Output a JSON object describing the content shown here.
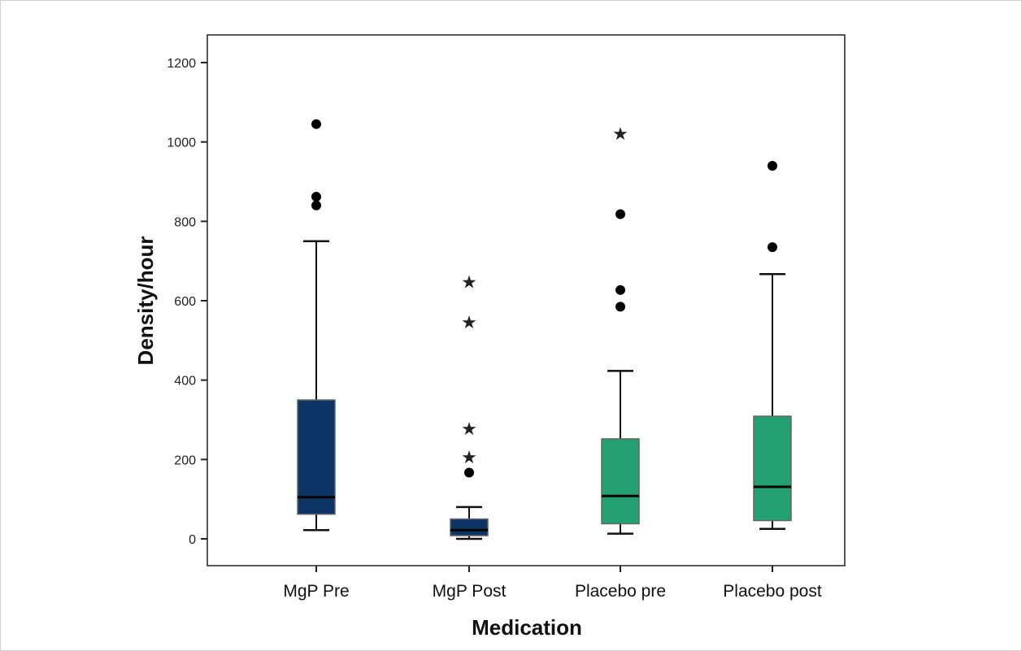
{
  "chart_data": {
    "type": "boxplot",
    "xlabel": "Medication",
    "ylabel": "Density/hour",
    "ylim": [
      -65,
      1230
    ],
    "yticks": [
      0,
      200,
      400,
      600,
      800,
      1000,
      1200
    ],
    "grid": false,
    "colors": {
      "mgp": "#0c3566",
      "placebo": "#22a072",
      "outline": "#666666"
    },
    "categories": [
      "MgP Pre",
      "MgP Post",
      "Placebo pre",
      "Placebo post"
    ],
    "boxes": [
      {
        "name": "MgP Pre",
        "color": "mgp",
        "whisker_low": 22,
        "q1": 62,
        "median": 105,
        "q3": 350,
        "whisker_high": 750,
        "outliers": [
          840,
          862,
          1045
        ],
        "extremes": []
      },
      {
        "name": "MgP Post",
        "color": "mgp",
        "whisker_low": 0,
        "q1": 8,
        "median": 22,
        "q3": 50,
        "whisker_high": 80,
        "outliers": [
          167
        ],
        "extremes": [
          207,
          278,
          547,
          648
        ]
      },
      {
        "name": "Placebo pre",
        "color": "placebo",
        "whisker_low": 13,
        "q1": 38,
        "median": 108,
        "q3": 252,
        "whisker_high": 423,
        "outliers": [
          585,
          627,
          818
        ],
        "extremes": [
          1022
        ]
      },
      {
        "name": "Placebo post",
        "color": "placebo",
        "whisker_low": 25,
        "q1": 46,
        "median": 131,
        "q3": 309,
        "whisker_high": 667,
        "outliers": [
          735,
          940
        ],
        "extremes": []
      }
    ]
  }
}
